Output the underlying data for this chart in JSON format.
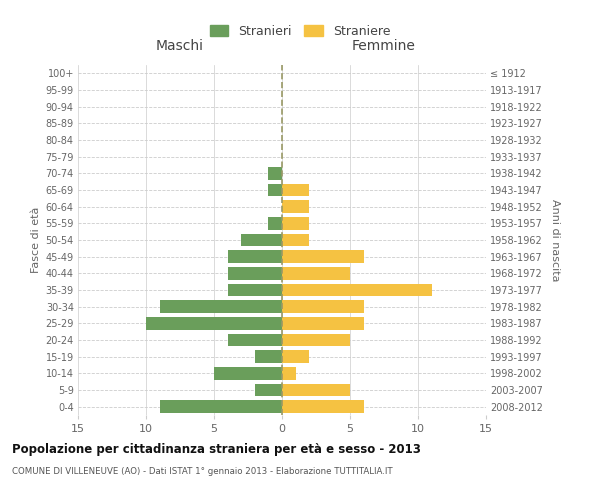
{
  "age_groups_bottom_to_top": [
    "0-4",
    "5-9",
    "10-14",
    "15-19",
    "20-24",
    "25-29",
    "30-34",
    "35-39",
    "40-44",
    "45-49",
    "50-54",
    "55-59",
    "60-64",
    "65-69",
    "70-74",
    "75-79",
    "80-84",
    "85-89",
    "90-94",
    "95-99",
    "100+"
  ],
  "birth_years_bottom_to_top": [
    "2008-2012",
    "2003-2007",
    "1998-2002",
    "1993-1997",
    "1988-1992",
    "1983-1987",
    "1978-1982",
    "1973-1977",
    "1968-1972",
    "1963-1967",
    "1958-1962",
    "1953-1957",
    "1948-1952",
    "1943-1947",
    "1938-1942",
    "1933-1937",
    "1928-1932",
    "1923-1927",
    "1918-1922",
    "1913-1917",
    "≤ 1912"
  ],
  "maschi_bottom_to_top": [
    9,
    2,
    5,
    2,
    4,
    10,
    9,
    4,
    4,
    4,
    3,
    1,
    0,
    1,
    1,
    0,
    0,
    0,
    0,
    0,
    0
  ],
  "femmine_bottom_to_top": [
    6,
    5,
    1,
    2,
    5,
    6,
    6,
    11,
    5,
    6,
    2,
    2,
    2,
    2,
    0,
    0,
    0,
    0,
    0,
    0,
    0
  ],
  "male_color": "#6a9e5b",
  "female_color": "#f5c242",
  "title": "Popolazione per cittadinanza straniera per età e sesso - 2013",
  "subtitle": "COMUNE DI VILLENEUVE (AO) - Dati ISTAT 1° gennaio 2013 - Elaborazione TUTTITALIA.IT",
  "ylabel_left": "Fasce di età",
  "ylabel_right": "Anni di nascita",
  "xlabel_left": "Maschi",
  "xlabel_right": "Femmine",
  "legend_male": "Stranieri",
  "legend_female": "Straniere",
  "xlim": 15,
  "background_color": "#ffffff",
  "grid_color": "#cccccc",
  "text_color": "#666666"
}
